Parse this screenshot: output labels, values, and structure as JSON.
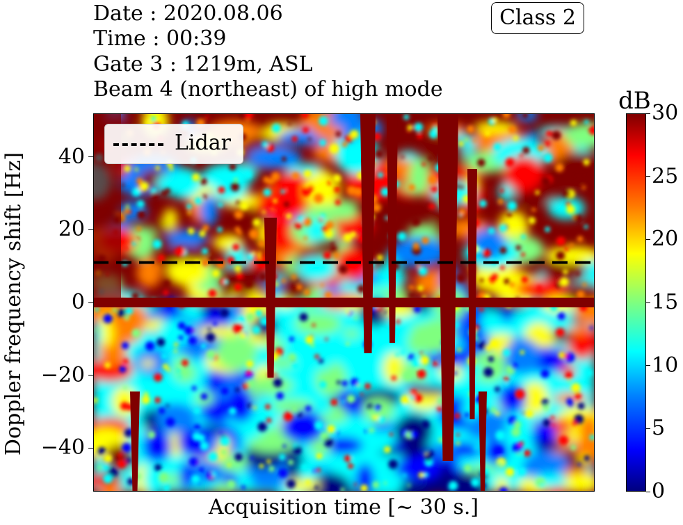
{
  "header": {
    "date_line": "Date : 2020.08.06",
    "time_line": "Time : 00:39",
    "gate_line": "Gate 3 : 1219m, ASL",
    "beam_line": "Beam 4 (northeast) of high mode",
    "class_badge": "Class 2"
  },
  "chart_data": {
    "type": "heatmap",
    "xlabel": "Acquisition time [~ 30 s.]",
    "ylabel": "Doppler frequency shift [Hz]",
    "ylim": [
      -52,
      52
    ],
    "yticks": [
      -40,
      -20,
      0,
      20,
      40
    ],
    "ytick_labels": [
      "−40",
      "−20",
      "0",
      "20",
      "40"
    ],
    "xticks": [],
    "colormap": "jet",
    "colorbar": {
      "title": "dB",
      "range": [
        0,
        30
      ],
      "ticks": [
        0,
        5,
        10,
        15,
        20,
        25,
        30
      ],
      "tick_labels": [
        "0",
        "5",
        "10",
        "15",
        "20",
        "25",
        "30"
      ]
    },
    "legend": {
      "position": "top-left",
      "entries": [
        "Lidar"
      ]
    },
    "series": [
      {
        "name": "Lidar",
        "style": "dashed",
        "color": "#000000",
        "y_value": 11
      }
    ],
    "zero_band_hz": 0,
    "colors": {
      "dark_red": "#7f0000",
      "red": "#ff0000",
      "orange": "#ff7f00",
      "yellow": "#ffff00",
      "green": "#7fff7f",
      "cyan": "#00ffff",
      "light_blue": "#007fff",
      "blue": "#0000ff",
      "dark_blue": "#00007f"
    }
  }
}
